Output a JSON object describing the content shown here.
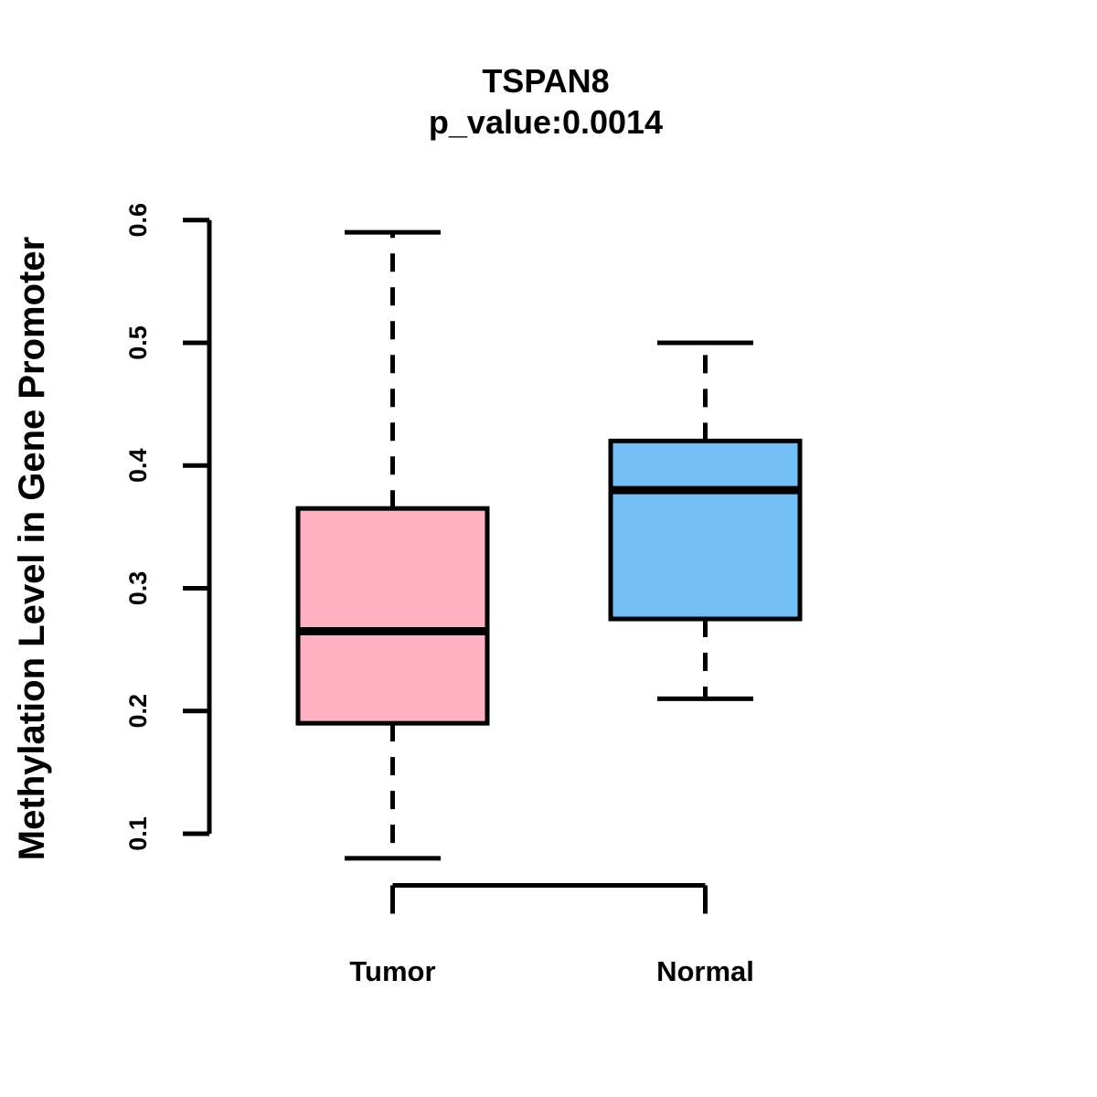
{
  "chart_data": {
    "type": "boxplot",
    "title": "TSPAN8",
    "subtitle": "p_value:0.0014",
    "ylabel": "Methylation Level in Gene Promoter",
    "xlabel": "",
    "ylim": [
      0.1,
      0.6
    ],
    "yticks": [
      "0.1",
      "0.2",
      "0.3",
      "0.4",
      "0.5",
      "0.6"
    ],
    "grid": false,
    "legend": "none",
    "categories": [
      "Tumor",
      "Normal"
    ],
    "series": [
      {
        "name": "Tumor",
        "fill_color": "#FFB1C1",
        "whisker_low": 0.08,
        "q1": 0.19,
        "median": 0.265,
        "q3": 0.365,
        "whisker_high": 0.59
      },
      {
        "name": "Normal",
        "fill_color": "#74BFF7",
        "whisker_low": 0.21,
        "q1": 0.275,
        "median": 0.38,
        "q3": 0.42,
        "whisker_high": 0.5
      }
    ],
    "colors": {
      "stroke": "#000000",
      "background": "#FFFFFF",
      "tumor_fill": "#FFB1C1",
      "normal_fill": "#74BFF7"
    }
  }
}
